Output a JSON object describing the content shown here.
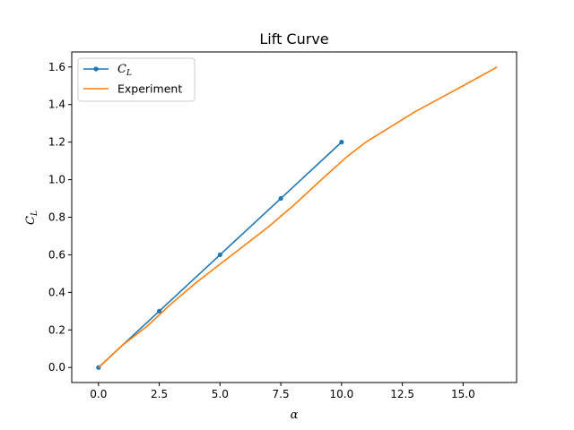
{
  "chart_data": {
    "type": "line",
    "title": "Lift Curve",
    "xlabel": "α",
    "ylabel": {
      "main": "C",
      "sub": "L"
    },
    "xlim": [
      -1.1,
      17.2
    ],
    "ylim": [
      -0.08,
      1.68
    ],
    "xticks": [
      0.0,
      2.5,
      5.0,
      7.5,
      10.0,
      12.5,
      15.0
    ],
    "yticks": [
      0.0,
      0.2,
      0.4,
      0.6,
      0.8,
      1.0,
      1.2,
      1.4,
      1.6
    ],
    "grid": false,
    "legend_position": "top-left",
    "series": [
      {
        "name": {
          "main": "C",
          "sub": "L"
        },
        "color": "#1f77b4",
        "marker": "circle",
        "x": [
          0.0,
          2.5,
          5.0,
          7.5,
          10.0
        ],
        "y": [
          0.0,
          0.3,
          0.6,
          0.9,
          1.2
        ]
      },
      {
        "name": "Experiment",
        "color": "#ff7f0e",
        "marker": "none",
        "x": [
          0.0,
          1.0,
          2.0,
          3.0,
          4.0,
          5.0,
          6.0,
          7.0,
          8.0,
          9.0,
          10.2,
          11.0,
          13.0,
          15.0,
          16.4
        ],
        "y": [
          0.0,
          0.12,
          0.22,
          0.34,
          0.45,
          0.55,
          0.65,
          0.75,
          0.86,
          0.98,
          1.12,
          1.2,
          1.36,
          1.5,
          1.6
        ]
      }
    ]
  }
}
